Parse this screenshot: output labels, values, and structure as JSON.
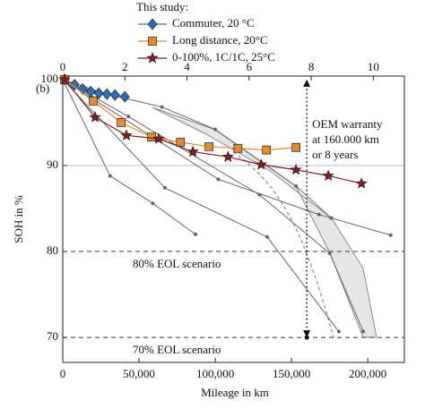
{
  "chart_data": {
    "type": "line",
    "panel_label": "(b)",
    "xlabel": "Mileage in km",
    "ylabel": "SOH in %",
    "xlim": [
      0,
      224000
    ],
    "xticks": [
      0,
      {
        "value": 50000,
        "label": "50,000"
      },
      {
        "value": 100000,
        "label": "100,000"
      },
      {
        "value": 150000,
        "label": "150,000"
      },
      {
        "value": 200000,
        "label": "200,000"
      }
    ],
    "x2lim": [
      0,
      11
    ],
    "x2ticks": [
      0,
      2,
      4,
      6,
      8,
      10
    ],
    "ylim": [
      67.1,
      100.4
    ],
    "yticks": [
      70,
      80,
      90,
      100
    ],
    "grid_y": [
      90
    ],
    "legend_title": "This study:",
    "legend_position": "top",
    "series": [
      {
        "name": "Commuter, 20 °C",
        "color": "#2c6fb7",
        "marker": "diamond",
        "axis": "x2",
        "x": [
          0.06,
          0.38,
          0.64,
          0.9,
          1.16,
          1.42,
          1.68,
          2.0
        ],
        "values": [
          100,
          99.4,
          98.9,
          98.6,
          98.4,
          98.3,
          98.2,
          98.0
        ]
      },
      {
        "name": "Long distance, 20°C",
        "color": "#e8892e",
        "marker": "square",
        "axis": "x2",
        "x": [
          0.06,
          0.98,
          1.88,
          2.86,
          3.79,
          4.71,
          5.64,
          6.56,
          7.51
        ],
        "values": [
          100,
          97.5,
          95.0,
          93.3,
          92.7,
          92.2,
          92.0,
          91.8,
          92.1
        ]
      },
      {
        "name": "0-100%, 1C/1C, 25°C",
        "color": "#8b1a1a",
        "marker": "star",
        "axis": "x2",
        "x": [
          0.06,
          1.04,
          2.05,
          3.09,
          4.19,
          5.32,
          6.39,
          7.51,
          8.55,
          9.62
        ],
        "values": [
          100,
          95.6,
          93.5,
          93.1,
          91.6,
          91.0,
          90.1,
          89.5,
          88.8,
          87.9
        ]
      }
    ],
    "reference_color": "#666666",
    "reference_lines": [
      {
        "x": [
          0,
          31000,
          59000,
          87000
        ],
        "values": [
          100,
          88.8,
          85.6,
          82.0
        ]
      },
      {
        "x": [
          0,
          67000,
          134000,
          181000
        ],
        "values": [
          100,
          87.4,
          81.7,
          70.7
        ]
      },
      {
        "x": [
          0,
          102000,
          168000,
          215000
        ],
        "values": [
          100,
          88.4,
          84.3,
          81.9
        ]
      },
      {
        "x": [
          0,
          43000,
          129000,
          175000,
          197000
        ],
        "values": [
          100,
          95.7,
          86.6,
          79.8,
          70.7
        ]
      },
      {
        "x": [
          0,
          29000,
          65000,
          100000,
          153000,
          176000
        ],
        "values": [
          100,
          98.3,
          96.8,
          94.2,
          87.6,
          83.9
        ]
      }
    ],
    "eol_lines": [
      {
        "value": 80,
        "label": "80% EOL scenario"
      },
      {
        "value": 70,
        "label": "70% EOL scenario"
      }
    ],
    "warranty": {
      "x": 160000,
      "from": 100,
      "to": 70,
      "label": [
        "OEM warranty",
        "at 160.000 km",
        "or 8 years"
      ]
    }
  }
}
